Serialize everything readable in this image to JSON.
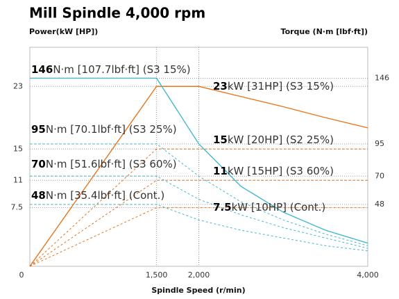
{
  "chart_data": {
    "type": "line",
    "title": "Mill Spindle 4,000 rpm",
    "y_label": "Power(kW [HP])",
    "y2_label": "Torque (N·m [lbf·ft])",
    "x_label": "Spindle Speed (r/min)",
    "x": [
      0,
      1500,
      2000,
      2500,
      3000,
      3500,
      4000
    ],
    "xlim": [
      0,
      4000
    ],
    "xticks": [
      0,
      {
        "value": 1500,
        "label": "1,500"
      },
      {
        "value": 2000,
        "label": "2,000"
      },
      {
        "value": 4000,
        "label": "4,000"
      }
    ],
    "ylim": [
      0,
      28
    ],
    "yticks": [
      7.5,
      11,
      15,
      23
    ],
    "y2lim": [
      0,
      170
    ],
    "y2ticks": [
      48,
      70,
      95,
      146
    ],
    "grid": true,
    "series": [
      {
        "color": "#e8731a",
        "dash": false,
        "values": [
          0,
          23,
          23,
          21.7,
          20.4,
          19,
          17.7
        ]
      },
      {
        "color": "#e8731a",
        "dash": true,
        "values": [
          0,
          15,
          15,
          15,
          15,
          15,
          15
        ]
      },
      {
        "color": "#e8731a",
        "dash": true,
        "values": [
          0,
          11,
          11,
          11,
          11,
          11,
          11
        ]
      },
      {
        "color": "#e8731a",
        "dash": true,
        "values": [
          0,
          7.5,
          7.5,
          7.5,
          7.5,
          7.5,
          7.5
        ]
      },
      {
        "color": "#3fb8d0",
        "dash": false,
        "axis": "y2",
        "values": [
          146,
          146,
          95,
          62,
          42,
          28,
          18
        ]
      },
      {
        "color": "#3fb8d0",
        "dash": true,
        "axis": "y2",
        "values": [
          95,
          95,
          70,
          50,
          36,
          25,
          16
        ]
      },
      {
        "color": "#3fb8d0",
        "dash": true,
        "axis": "y2",
        "values": [
          70,
          70,
          52,
          40,
          30,
          22,
          14
        ]
      },
      {
        "color": "#3fb8d0",
        "dash": true,
        "axis": "y2",
        "values": [
          48,
          48,
          36,
          28,
          22,
          16,
          12
        ]
      }
    ],
    "annotations": [
      {
        "value": 146,
        "text": "N·m [107.7lbf·ft] (S3 15%)"
      },
      {
        "value": 23,
        "text": "kW [31HP] (S3 15%)"
      },
      {
        "value": 95,
        "text": "N·m [70.1lbf·ft] (S3 25%)"
      },
      {
        "value": 15,
        "text": "kW [20HP] (S2 25%)"
      },
      {
        "value": 70,
        "text": "N·m [51.6lbf·ft] (S3 60%)"
      },
      {
        "value": 11,
        "text": "kW [15HP] (S3 60%)"
      },
      {
        "value": 48,
        "text": "N·m [35.4lbf·ft] (Cont.)"
      },
      {
        "value": 7.5,
        "text": "kW [10HP] (Cont.)"
      }
    ]
  }
}
